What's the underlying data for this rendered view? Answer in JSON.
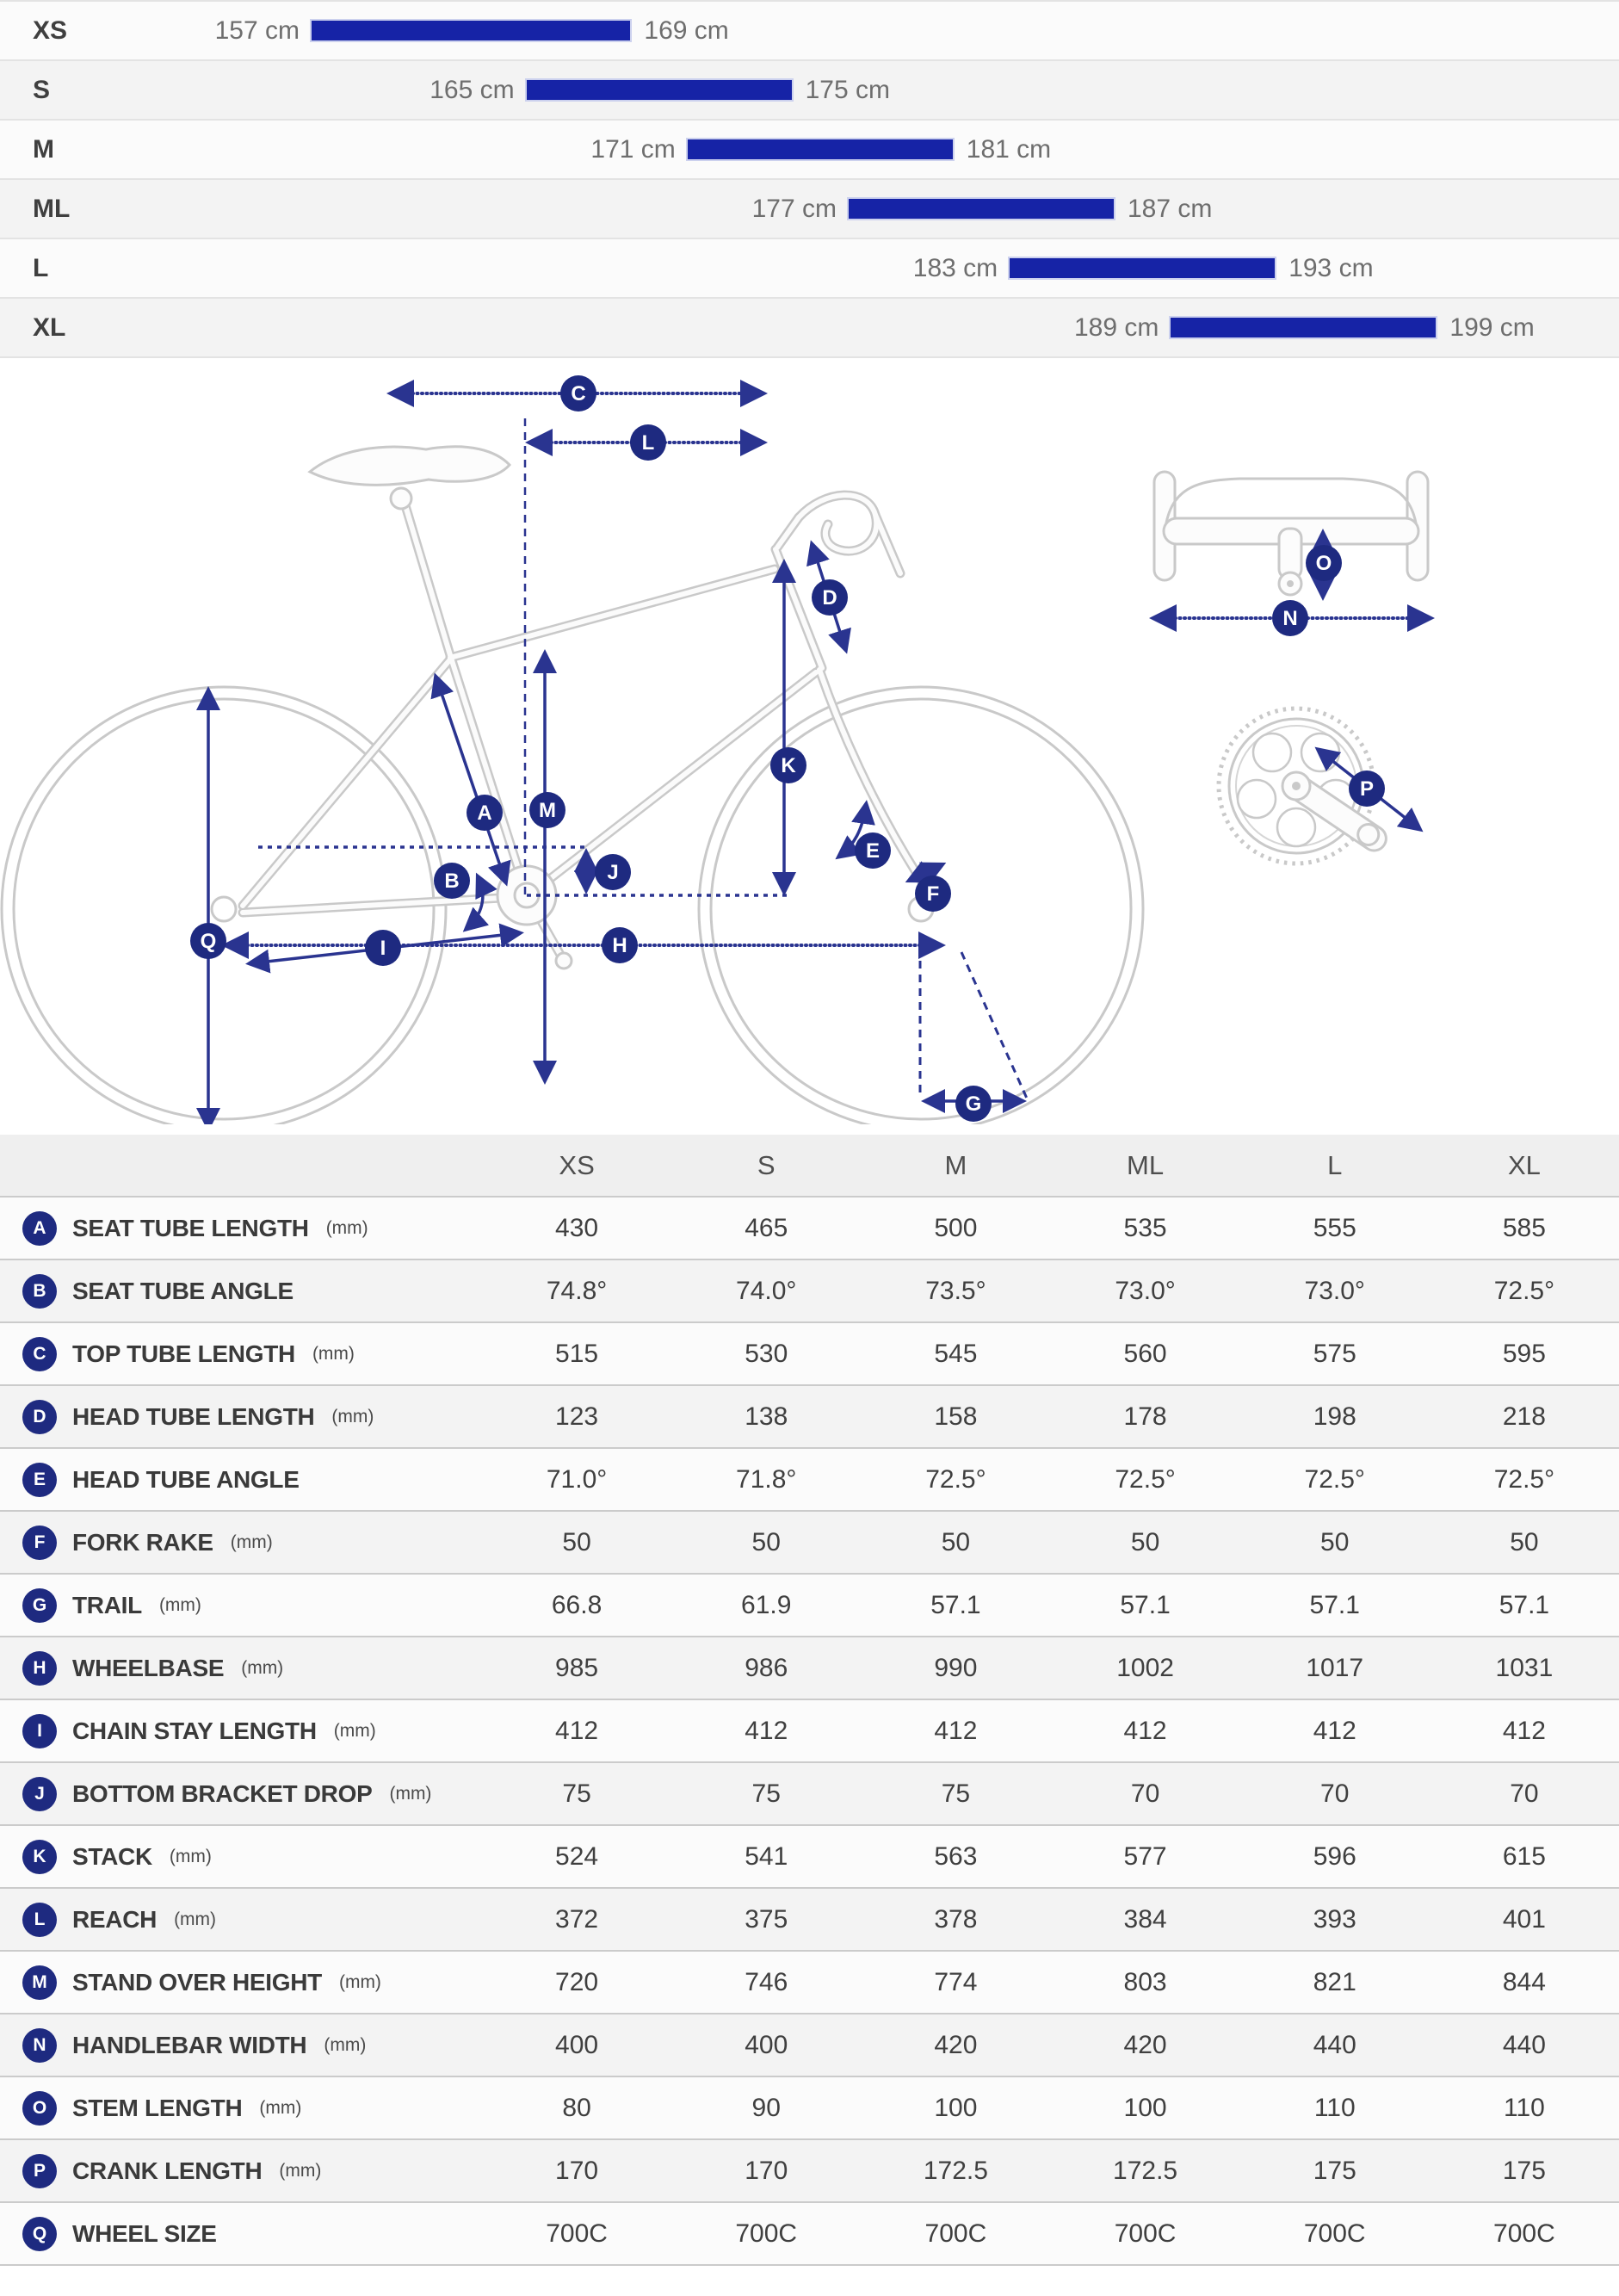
{
  "colors": {
    "bar_blue": "#1623a6",
    "arrow_navy": "#2a3490",
    "badge_navy": "#1e2a80",
    "line_gray": "#c9c9c9",
    "divider_light": "#e3e3e3",
    "divider_dark": "#cbcbcb"
  },
  "size_chart": {
    "unit": "cm",
    "rows": [
      {
        "size": "XS",
        "min": 157,
        "max": 169,
        "min_label": "157 cm",
        "max_label": "169 cm"
      },
      {
        "size": "S",
        "min": 165,
        "max": 175,
        "min_label": "165 cm",
        "max_label": "175 cm"
      },
      {
        "size": "M",
        "min": 171,
        "max": 181,
        "min_label": "171 cm",
        "max_label": "181 cm"
      },
      {
        "size": "ML",
        "min": 177,
        "max": 187,
        "min_label": "177 cm",
        "max_label": "187 cm"
      },
      {
        "size": "L",
        "min": 183,
        "max": 193,
        "min_label": "183 cm",
        "max_label": "193 cm"
      },
      {
        "size": "XL",
        "min": 189,
        "max": 199,
        "min_label": "189 cm",
        "max_label": "199 cm"
      }
    ]
  },
  "diagram": {
    "badges": [
      "A",
      "B",
      "C",
      "D",
      "E",
      "F",
      "G",
      "H",
      "I",
      "J",
      "K",
      "L",
      "M",
      "N",
      "O",
      "P",
      "Q"
    ]
  },
  "table": {
    "columns": [
      "XS",
      "S",
      "M",
      "ML",
      "L",
      "XL"
    ],
    "rows": [
      {
        "letter": "A",
        "label": "SEAT TUBE LENGTH",
        "unit": "(mm)",
        "values": [
          "430",
          "465",
          "500",
          "535",
          "555",
          "585"
        ]
      },
      {
        "letter": "B",
        "label": "SEAT TUBE ANGLE",
        "unit": "",
        "values": [
          "74.8°",
          "74.0°",
          "73.5°",
          "73.0°",
          "73.0°",
          "72.5°"
        ]
      },
      {
        "letter": "C",
        "label": "TOP TUBE LENGTH",
        "unit": "(mm)",
        "values": [
          "515",
          "530",
          "545",
          "560",
          "575",
          "595"
        ]
      },
      {
        "letter": "D",
        "label": "HEAD TUBE LENGTH",
        "unit": "(mm)",
        "values": [
          "123",
          "138",
          "158",
          "178",
          "198",
          "218"
        ]
      },
      {
        "letter": "E",
        "label": "HEAD TUBE ANGLE",
        "unit": "",
        "values": [
          "71.0°",
          "71.8°",
          "72.5°",
          "72.5°",
          "72.5°",
          "72.5°"
        ]
      },
      {
        "letter": "F",
        "label": "FORK RAKE",
        "unit": "(mm)",
        "values": [
          "50",
          "50",
          "50",
          "50",
          "50",
          "50"
        ]
      },
      {
        "letter": "G",
        "label": "TRAIL",
        "unit": "(mm)",
        "values": [
          "66.8",
          "61.9",
          "57.1",
          "57.1",
          "57.1",
          "57.1"
        ]
      },
      {
        "letter": "H",
        "label": "WHEELBASE",
        "unit": "(mm)",
        "values": [
          "985",
          "986",
          "990",
          "1002",
          "1017",
          "1031"
        ]
      },
      {
        "letter": "I",
        "label": "CHAIN STAY LENGTH",
        "unit": "(mm)",
        "values": [
          "412",
          "412",
          "412",
          "412",
          "412",
          "412"
        ]
      },
      {
        "letter": "J",
        "label": "BOTTOM BRACKET DROP",
        "unit": "(mm)",
        "values": [
          "75",
          "75",
          "75",
          "70",
          "70",
          "70"
        ]
      },
      {
        "letter": "K",
        "label": "STACK",
        "unit": "(mm)",
        "values": [
          "524",
          "541",
          "563",
          "577",
          "596",
          "615"
        ]
      },
      {
        "letter": "L",
        "label": "REACH",
        "unit": "(mm)",
        "values": [
          "372",
          "375",
          "378",
          "384",
          "393",
          "401"
        ]
      },
      {
        "letter": "M",
        "label": "STAND OVER HEIGHT",
        "unit": "(mm)",
        "values": [
          "720",
          "746",
          "774",
          "803",
          "821",
          "844"
        ]
      },
      {
        "letter": "N",
        "label": "HANDLEBAR WIDTH",
        "unit": "(mm)",
        "values": [
          "400",
          "400",
          "420",
          "420",
          "440",
          "440"
        ]
      },
      {
        "letter": "O",
        "label": "STEM LENGTH",
        "unit": "(mm)",
        "values": [
          "80",
          "90",
          "100",
          "100",
          "110",
          "110"
        ]
      },
      {
        "letter": "P",
        "label": "CRANK LENGTH",
        "unit": "(mm)",
        "values": [
          "170",
          "170",
          "172.5",
          "172.5",
          "175",
          "175"
        ]
      },
      {
        "letter": "Q",
        "label": "WHEEL SIZE",
        "unit": "",
        "values": [
          "700C",
          "700C",
          "700C",
          "700C",
          "700C",
          "700C"
        ]
      }
    ]
  }
}
